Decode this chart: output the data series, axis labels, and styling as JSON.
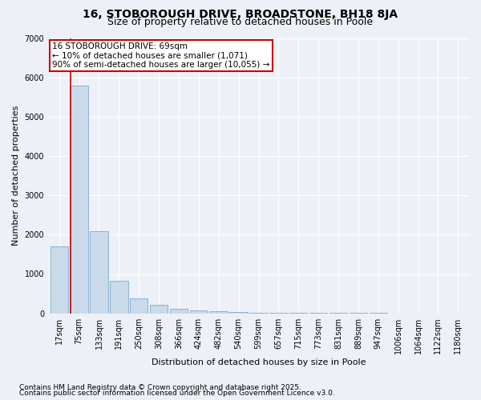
{
  "title": "16, STOBOROUGH DRIVE, BROADSTONE, BH18 8JA",
  "subtitle": "Size of property relative to detached houses in Poole",
  "xlabel": "Distribution of detached houses by size in Poole",
  "ylabel": "Number of detached properties",
  "categories": [
    "17sqm",
    "75sqm",
    "133sqm",
    "191sqm",
    "250sqm",
    "308sqm",
    "366sqm",
    "424sqm",
    "482sqm",
    "540sqm",
    "599sqm",
    "657sqm",
    "715sqm",
    "773sqm",
    "831sqm",
    "889sqm",
    "947sqm",
    "1006sqm",
    "1064sqm",
    "1122sqm",
    "1180sqm"
  ],
  "values": [
    1700,
    5800,
    2100,
    820,
    370,
    210,
    110,
    65,
    50,
    30,
    18,
    12,
    8,
    5,
    3,
    2,
    2,
    1,
    1,
    1,
    1
  ],
  "bar_color": "#c9daea",
  "bar_edge_color": "#6a9ec4",
  "bar_edge_width": 0.5,
  "vline_color": "#cc0000",
  "vline_x": 0.58,
  "annotation_line1": "16 STOBOROUGH DRIVE: 69sqm",
  "annotation_line2": "← 10% of detached houses are smaller (1,071)",
  "annotation_line3": "90% of semi-detached houses are larger (10,055) →",
  "annotation_box_color": "#cc0000",
  "footer1": "Contains HM Land Registry data © Crown copyright and database right 2025.",
  "footer2": "Contains public sector information licensed under the Open Government Licence v3.0.",
  "ylim": [
    0,
    7000
  ],
  "background_color": "#edf1f7",
  "grid_color": "#ffffff",
  "title_fontsize": 10,
  "subtitle_fontsize": 9,
  "axis_label_fontsize": 8,
  "tick_fontsize": 7,
  "annotation_fontsize": 7.5,
  "footer_fontsize": 6.5
}
